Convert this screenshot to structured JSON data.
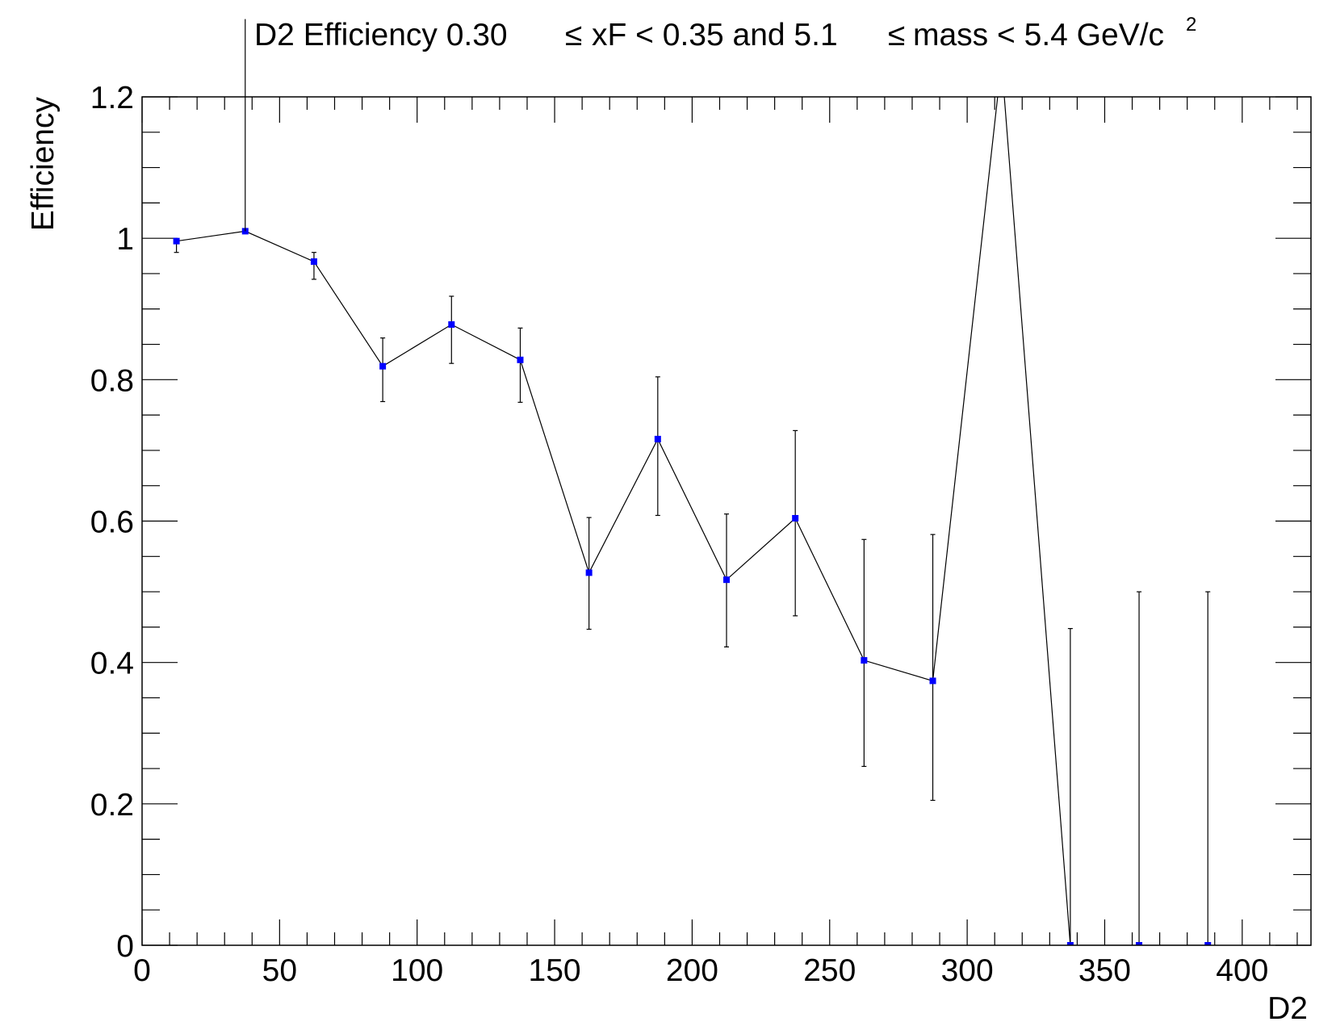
{
  "chart_data": {
    "type": "scatter",
    "title_parts": {
      "a": "D2 Efficiency 0.30",
      "le1": "≤",
      "b": "xF < 0.35 and 5.1",
      "le2": "≤",
      "c": "mass < 5.4 GeV/c",
      "sup": "2"
    },
    "xlabel": "D2",
    "ylabel": "Efficiency",
    "xlim": [
      0,
      425
    ],
    "ylim": [
      0,
      1.2
    ],
    "x_major_ticks": [
      0,
      50,
      100,
      150,
      200,
      250,
      300,
      350,
      400
    ],
    "x_minor_step": 10,
    "y_major_ticks": [
      0,
      0.2,
      0.4,
      0.6,
      0.8,
      1.0,
      1.2
    ],
    "y_minor_step": 0.05,
    "x_tick_labels": [
      "0",
      "50",
      "100",
      "150",
      "200",
      "250",
      "300",
      "350",
      "400"
    ],
    "y_tick_labels": [
      "0",
      "0.2",
      "0.4",
      "0.6",
      "0.8",
      "1",
      "1.2"
    ],
    "series": [
      {
        "name": "D2 efficiency",
        "marker_color": "#0000ff",
        "line_color": "#000000",
        "x": [
          12.5,
          37.5,
          62.5,
          87.5,
          112.5,
          137.5,
          162.5,
          187.5,
          212.5,
          237.5,
          262.5,
          287.5,
          312.5,
          337.5,
          362.5,
          387.5
        ],
        "y": [
          0.996,
          1.01,
          0.967,
          0.819,
          0.878,
          0.828,
          0.527,
          0.716,
          0.517,
          0.604,
          0.403,
          0.374,
          1.25,
          0.0,
          0.0,
          0.0
        ],
        "y_err_low": [
          0.016,
          0.0,
          0.025,
          0.05,
          0.055,
          0.06,
          0.08,
          0.108,
          0.095,
          0.138,
          0.15,
          0.169,
          0.0,
          0.0,
          0.0,
          0.0
        ],
        "y_err_high": [
          0.0,
          0.3,
          0.013,
          0.04,
          0.04,
          0.045,
          0.078,
          0.088,
          0.093,
          0.124,
          0.171,
          0.207,
          0.0,
          0.448,
          0.5,
          0.5
        ]
      }
    ]
  }
}
